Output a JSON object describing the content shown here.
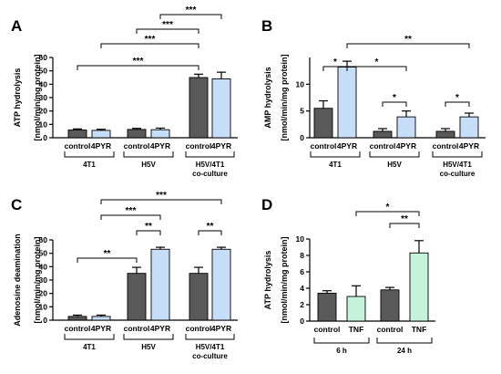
{
  "colors": {
    "control": "#595959",
    "treated": "#c6def7",
    "tnf": "#c4f2da"
  },
  "chart_data": [
    {
      "panel": "A",
      "type": "bar",
      "ylabel": [
        "ATP hydrolysis",
        "[nmol/min/mg protein]"
      ],
      "ylim": [
        0,
        60
      ],
      "yticks": [
        0,
        10,
        20,
        30,
        40,
        50,
        60
      ],
      "categories": [
        "control",
        "4PYR",
        "control",
        "4PYR",
        "control",
        "4PYR"
      ],
      "values": [
        5.8,
        5.5,
        6.2,
        6.0,
        45,
        44
      ],
      "errors": [
        0.8,
        0.8,
        0.8,
        1.2,
        2.5,
        5
      ],
      "bar_colors": [
        "control",
        "treated",
        "control",
        "treated",
        "control",
        "treated"
      ],
      "groups": [
        {
          "label": [
            "4T1"
          ],
          "from": 0,
          "to": 1
        },
        {
          "label": [
            "H5V"
          ],
          "from": 2,
          "to": 3
        },
        {
          "label": [
            "H5V/4T1",
            "co-culture"
          ],
          "from": 4,
          "to": 5
        }
      ],
      "significance": [
        {
          "from": 0,
          "to": 4,
          "label": "***"
        },
        {
          "from": 1,
          "to": 4,
          "label": "***"
        },
        {
          "from": 2,
          "to": 4,
          "label": "***"
        },
        {
          "from": 3,
          "to": 5,
          "label": "***"
        }
      ]
    },
    {
      "panel": "B",
      "type": "bar",
      "ylabel": [
        "AMP hydrolysis",
        "[nmol/min/mg protein]"
      ],
      "ylim": [
        0,
        15
      ],
      "yticks": [
        0,
        5,
        10
      ],
      "categories": [
        "control",
        "4PYR",
        "control",
        "4PYR",
        "control",
        "4PYR"
      ],
      "values": [
        5.5,
        13.2,
        1.2,
        3.9,
        1.2,
        3.9
      ],
      "errors": [
        1.4,
        1.1,
        0.5,
        1.1,
        0.5,
        0.7
      ],
      "bar_colors": [
        "control",
        "treated",
        "control",
        "treated",
        "control",
        "treated"
      ],
      "groups": [
        {
          "label": [
            "4T1"
          ],
          "from": 0,
          "to": 1
        },
        {
          "label": [
            "H5V"
          ],
          "from": 2,
          "to": 3
        },
        {
          "label": [
            "H5V/4T1",
            "co-culture"
          ],
          "from": 4,
          "to": 5
        }
      ],
      "significance": [
        {
          "from": 0,
          "to": 1,
          "label": "*"
        },
        {
          "from": 1,
          "to": 3,
          "label": "*"
        },
        {
          "from": 1,
          "to": 5,
          "label": "**"
        },
        {
          "from": 2,
          "to": 3,
          "label": "*"
        },
        {
          "from": 4,
          "to": 5,
          "label": "*"
        }
      ]
    },
    {
      "panel": "C",
      "type": "bar",
      "ylabel": [
        "Adenosine deamination",
        "[nmol/min/mg protein]"
      ],
      "ylim": [
        0,
        60
      ],
      "yticks": [
        0,
        10,
        20,
        30,
        40,
        50,
        60
      ],
      "categories": [
        "control",
        "4PYR",
        "control",
        "4PYR",
        "control",
        "4PYR"
      ],
      "values": [
        2.8,
        2.8,
        35,
        53,
        35,
        53
      ],
      "errors": [
        1.0,
        1.0,
        4.5,
        1.5,
        4.5,
        1.5
      ],
      "bar_colors": [
        "control",
        "treated",
        "control",
        "treated",
        "control",
        "treated"
      ],
      "groups": [
        {
          "label": [
            "4T1"
          ],
          "from": 0,
          "to": 1
        },
        {
          "label": [
            "H5V"
          ],
          "from": 2,
          "to": 3
        },
        {
          "label": [
            "H5V/4T1",
            "co-culture"
          ],
          "from": 4,
          "to": 5
        }
      ],
      "significance": [
        {
          "from": 0,
          "to": 2,
          "label": "**"
        },
        {
          "from": 2,
          "to": 3,
          "label": "**"
        },
        {
          "from": 4,
          "to": 5,
          "label": "**"
        },
        {
          "from": 1,
          "to": 3,
          "label": "***"
        },
        {
          "from": 1,
          "to": 5,
          "label": "***"
        }
      ]
    },
    {
      "panel": "D",
      "type": "bar",
      "ylabel": [
        "ATP hydrolysis",
        "[nmol/min/mg protein]"
      ],
      "ylim": [
        0,
        10
      ],
      "yticks": [
        0,
        2,
        4,
        6,
        8,
        10
      ],
      "categories": [
        "control",
        "TNF",
        "control",
        "TNF"
      ],
      "values": [
        3.4,
        3.0,
        3.8,
        8.3
      ],
      "errors": [
        0.3,
        1.3,
        0.3,
        1.5
      ],
      "bar_colors": [
        "control",
        "tnf",
        "control",
        "tnf"
      ],
      "groups": [
        {
          "label": [
            "6 h"
          ],
          "from": 0,
          "to": 1
        },
        {
          "label": [
            "24 h"
          ],
          "from": 2,
          "to": 3
        }
      ],
      "significance": [
        {
          "from": 2,
          "to": 3,
          "label": "**"
        },
        {
          "from": 1,
          "to": 3,
          "label": "*"
        }
      ]
    }
  ]
}
